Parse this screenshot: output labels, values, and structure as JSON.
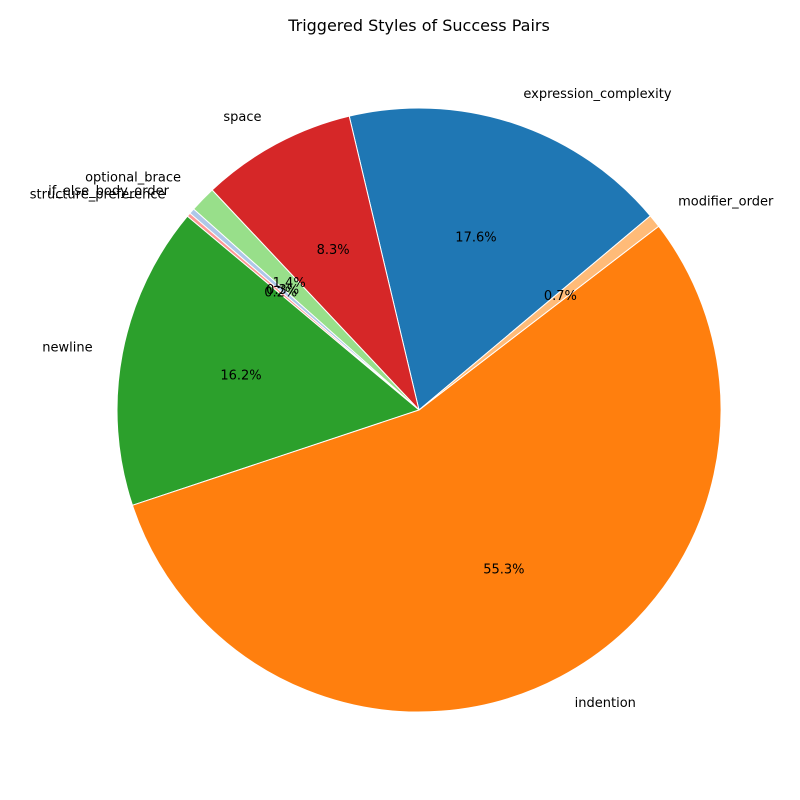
{
  "chart_data": {
    "type": "pie",
    "title": "Triggered Styles of Success Pairs",
    "start_angle_deg": 40,
    "direction": "counterclockwise",
    "slices": [
      {
        "label": "expression_complexity",
        "value": 17.6,
        "pct_label": "17.6%",
        "color": "#1f77b4"
      },
      {
        "label": "space",
        "value": 8.3,
        "pct_label": "8.3%",
        "color": "#d62728"
      },
      {
        "label": "optional_brace",
        "value": 1.4,
        "pct_label": "1.4%",
        "color": "#98df8a"
      },
      {
        "label": "if_else_body_order",
        "value": 0.3,
        "pct_label": "0.3%",
        "color": "#aec7e8"
      },
      {
        "label": "structure_preference",
        "value": 0.2,
        "pct_label": "0.2%",
        "color": "#ff9896"
      },
      {
        "label": "newline",
        "value": 16.2,
        "pct_label": "16.2%",
        "color": "#2ca02c"
      },
      {
        "label": "indention",
        "value": 55.3,
        "pct_label": "55.3%",
        "color": "#ff7f0e"
      },
      {
        "label": "modifier_order",
        "value": 0.7,
        "pct_label": "0.7%",
        "color": "#ffbb78"
      }
    ]
  }
}
